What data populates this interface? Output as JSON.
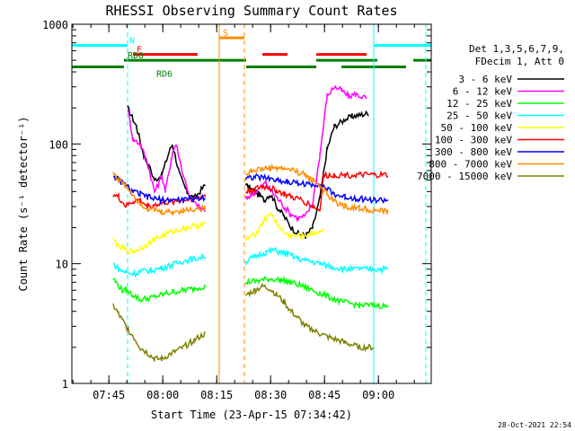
{
  "chart_data": {
    "type": "line",
    "title": "RHESSI Observing Summary Count Rates",
    "xlabel": "Start Time (23-Apr-15 07:34:42)",
    "ylabel": "Count Rate (s⁻¹ detector⁻¹)",
    "yscale": "log",
    "ylim": [
      1,
      1000
    ],
    "xlim_minutes": [
      0,
      100
    ],
    "yticks": [
      {
        "value": 1,
        "label": "1"
      },
      {
        "value": 10,
        "label": "10"
      },
      {
        "value": 100,
        "label": "100"
      },
      {
        "value": 1000,
        "label": "1000"
      }
    ],
    "xticks": [
      {
        "t": 10.3,
        "label": "07:45"
      },
      {
        "t": 25.3,
        "label": "08:00"
      },
      {
        "t": 40.3,
        "label": "08:15"
      },
      {
        "t": 55.3,
        "label": "08:30"
      },
      {
        "t": 70.3,
        "label": "08:45"
      },
      {
        "t": 85.3,
        "label": "09:00"
      }
    ],
    "legend_header": [
      "Det 1,3,5,6,7,9,",
      "FDecim 1, Att 0"
    ],
    "legend_position": "right",
    "series": [
      {
        "name": "3 - 6 keV",
        "color": "#000000",
        "points": [
          [
            15.5,
            200
          ],
          [
            18,
            140
          ],
          [
            20,
            80
          ],
          [
            21.5,
            65
          ],
          [
            23,
            50
          ],
          [
            25,
            55
          ],
          [
            27,
            85
          ],
          [
            28,
            100
          ],
          [
            30,
            55
          ],
          [
            32,
            40
          ],
          [
            34,
            35
          ],
          [
            37,
            45
          ],
          [
            48.5,
            45
          ],
          [
            50,
            42
          ],
          [
            52,
            38
          ],
          [
            53.5,
            34
          ],
          [
            55,
            38
          ],
          [
            56,
            35
          ],
          [
            57,
            30
          ],
          [
            59,
            25
          ],
          [
            61,
            20
          ],
          [
            63,
            18
          ],
          [
            65,
            17
          ],
          [
            67,
            20
          ],
          [
            69,
            35
          ],
          [
            71,
            90
          ],
          [
            73,
            140
          ],
          [
            76,
            160
          ],
          [
            78,
            170
          ],
          [
            80,
            175
          ],
          [
            82.5,
            180
          ]
        ]
      },
      {
        "name": "6 - 12 keV",
        "color": "#ff00ff",
        "points": [
          [
            15.5,
            200
          ],
          [
            17,
            110
          ],
          [
            19,
            100
          ],
          [
            21,
            70
          ],
          [
            23,
            40
          ],
          [
            24,
            45
          ],
          [
            25,
            55
          ],
          [
            26,
            40
          ],
          [
            28,
            85
          ],
          [
            29,
            100
          ],
          [
            31,
            55
          ],
          [
            33,
            35
          ],
          [
            35,
            30
          ],
          [
            37,
            28
          ],
          [
            48.5,
            35
          ],
          [
            50,
            38
          ],
          [
            52,
            42
          ],
          [
            54,
            48
          ],
          [
            55,
            42
          ],
          [
            57,
            36
          ],
          [
            59,
            30
          ],
          [
            61,
            26
          ],
          [
            63,
            24
          ],
          [
            65,
            25
          ],
          [
            67,
            32
          ],
          [
            69,
            80
          ],
          [
            71,
            250
          ],
          [
            73,
            300
          ],
          [
            75,
            280
          ],
          [
            77,
            250
          ],
          [
            79,
            260
          ],
          [
            82,
            240
          ]
        ]
      },
      {
        "name": "12 - 25 keV",
        "color": "#00ff00",
        "points": [
          [
            11.5,
            7.5
          ],
          [
            14,
            6
          ],
          [
            15,
            6
          ],
          [
            17,
            5.5
          ],
          [
            19,
            5
          ],
          [
            22,
            5.2
          ],
          [
            25,
            5.5
          ],
          [
            28,
            5.8
          ],
          [
            31,
            6
          ],
          [
            34,
            6.2
          ],
          [
            37,
            6.5
          ],
          [
            48.5,
            7
          ],
          [
            52,
            7.2
          ],
          [
            55,
            7.5
          ],
          [
            58,
            7.3
          ],
          [
            61,
            7
          ],
          [
            64,
            6.5
          ],
          [
            67,
            6
          ],
          [
            70,
            5.5
          ],
          [
            75,
            4.8
          ],
          [
            80,
            4.5
          ],
          [
            85,
            4.5
          ],
          [
            88,
            4.4
          ]
        ]
      },
      {
        "name": "25 - 50 keV",
        "color": "#00ffff",
        "points": [
          [
            11.5,
            10
          ],
          [
            13,
            9
          ],
          [
            15,
            8.5
          ],
          [
            17,
            8.2
          ],
          [
            19,
            8.6
          ],
          [
            22,
            8.8
          ],
          [
            25,
            9.2
          ],
          [
            28,
            9.8
          ],
          [
            31,
            10.5
          ],
          [
            34,
            11
          ],
          [
            37,
            11.5
          ],
          [
            48.5,
            10.5
          ],
          [
            51,
            11.5
          ],
          [
            54,
            12.5
          ],
          [
            56,
            13
          ],
          [
            58,
            12.5
          ],
          [
            60,
            12
          ],
          [
            63,
            11
          ],
          [
            66,
            10.5
          ],
          [
            69,
            10
          ],
          [
            72,
            9.5
          ],
          [
            76,
            9
          ],
          [
            80,
            9
          ],
          [
            84,
            9
          ],
          [
            88,
            9
          ]
        ]
      },
      {
        "name": "50 - 100 keV",
        "color": "#ffff00",
        "points": [
          [
            11.5,
            16
          ],
          [
            13,
            14
          ],
          [
            15,
            13
          ],
          [
            17,
            12.5
          ],
          [
            19,
            13.5
          ],
          [
            21,
            14.5
          ],
          [
            23,
            16
          ],
          [
            26,
            17.5
          ],
          [
            29,
            19
          ],
          [
            32,
            20
          ],
          [
            35,
            21
          ],
          [
            37,
            21.5
          ],
          [
            48.5,
            16
          ],
          [
            51,
            17.5
          ],
          [
            53,
            22
          ],
          [
            55,
            26
          ],
          [
            57,
            22
          ],
          [
            59,
            18
          ],
          [
            61,
            17
          ],
          [
            64,
            17
          ],
          [
            67,
            18
          ],
          [
            70,
            19
          ]
        ]
      },
      {
        "name": "100 - 300 keV",
        "color": "#ff0000",
        "points": [
          [
            11.5,
            38
          ],
          [
            13,
            36
          ],
          [
            15,
            30
          ],
          [
            17,
            33
          ],
          [
            19,
            34
          ],
          [
            21,
            30
          ],
          [
            23,
            31
          ],
          [
            25,
            32
          ],
          [
            28,
            33
          ],
          [
            31,
            34
          ],
          [
            34,
            35
          ],
          [
            37,
            37
          ],
          [
            48.5,
            40
          ],
          [
            51,
            42
          ],
          [
            53,
            44
          ],
          [
            55,
            43
          ],
          [
            57,
            41
          ],
          [
            59,
            38
          ],
          [
            61,
            36
          ],
          [
            64,
            34
          ],
          [
            67,
            30
          ],
          [
            69,
            28
          ],
          [
            70,
            54
          ],
          [
            73,
            55
          ],
          [
            76,
            55
          ],
          [
            80,
            55
          ],
          [
            84,
            55
          ],
          [
            88,
            55
          ]
        ]
      },
      {
        "name": "300 - 800 keV",
        "color": "#0000ff",
        "points": [
          [
            11.5,
            55
          ],
          [
            13,
            50
          ],
          [
            15,
            45
          ],
          [
            17,
            40
          ],
          [
            19,
            38
          ],
          [
            21,
            36
          ],
          [
            23,
            35
          ],
          [
            25,
            34
          ],
          [
            28,
            34
          ],
          [
            31,
            34
          ],
          [
            34,
            35
          ],
          [
            37,
            36
          ],
          [
            48.5,
            52
          ],
          [
            51,
            53
          ],
          [
            54,
            52
          ],
          [
            57,
            50
          ],
          [
            60,
            48
          ],
          [
            63,
            47
          ],
          [
            66,
            46
          ],
          [
            69,
            46
          ],
          [
            71,
            42
          ],
          [
            73,
            38
          ],
          [
            76,
            36
          ],
          [
            80,
            35
          ],
          [
            84,
            34
          ],
          [
            88,
            34
          ]
        ]
      },
      {
        "name": "800 - 7000 keV",
        "color": "#ff8c00",
        "points": [
          [
            11.5,
            58
          ],
          [
            13,
            50
          ],
          [
            15,
            45
          ],
          [
            17,
            38
          ],
          [
            19,
            32
          ],
          [
            21,
            29
          ],
          [
            23,
            28
          ],
          [
            25,
            27
          ],
          [
            28,
            27
          ],
          [
            31,
            28
          ],
          [
            34,
            28.5
          ],
          [
            37,
            29
          ],
          [
            48.5,
            57
          ],
          [
            50,
            60
          ],
          [
            53,
            62
          ],
          [
            55,
            63
          ],
          [
            57,
            63
          ],
          [
            59,
            62
          ],
          [
            61,
            61
          ],
          [
            63,
            58
          ],
          [
            65,
            55
          ],
          [
            67,
            50
          ],
          [
            69,
            45
          ],
          [
            71,
            38
          ],
          [
            73,
            33
          ],
          [
            76,
            30
          ],
          [
            80,
            29
          ],
          [
            84,
            28
          ],
          [
            88,
            27
          ]
        ]
      },
      {
        "name": "7000 - 15000 keV",
        "color": "#808000",
        "points": [
          [
            11.5,
            4.5
          ],
          [
            13,
            3.8
          ],
          [
            15,
            3
          ],
          [
            17,
            2.5
          ],
          [
            19,
            2
          ],
          [
            21,
            1.8
          ],
          [
            23,
            1.6
          ],
          [
            25,
            1.6
          ],
          [
            28,
            1.8
          ],
          [
            31,
            2
          ],
          [
            34,
            2.3
          ],
          [
            37,
            2.6
          ],
          [
            48.5,
            5.5
          ],
          [
            51,
            6
          ],
          [
            53,
            6.5
          ],
          [
            55,
            6.2
          ],
          [
            57,
            5.5
          ],
          [
            59,
            4.8
          ],
          [
            61,
            4
          ],
          [
            63,
            3.5
          ],
          [
            65,
            3
          ],
          [
            67,
            2.8
          ],
          [
            69,
            2.6
          ],
          [
            72,
            2.4
          ],
          [
            76,
            2.2
          ],
          [
            80,
            2
          ],
          [
            84,
            2
          ]
        ]
      }
    ],
    "flags": [
      {
        "label": "N",
        "color": "#00ffff",
        "segments": [
          [
            0,
            15.5
          ],
          [
            84,
            100
          ]
        ],
        "y": 665
      },
      {
        "label": "S",
        "color": "#ff8c00",
        "segments": [
          [
            41,
            48
          ]
        ],
        "y": 770
      },
      {
        "label": "F",
        "color": "#ff0000",
        "segments": [
          [
            17,
            35
          ],
          [
            53,
            60
          ],
          [
            68,
            82
          ]
        ],
        "y": 560
      },
      {
        "label": "RD0",
        "color": "#008000",
        "segments": [
          [
            14.5,
            48.5
          ],
          [
            68,
            85
          ],
          [
            95,
            100
          ]
        ],
        "y": 500
      },
      {
        "label": "RD6",
        "color": "#008000",
        "segments": [
          [
            0,
            14.5
          ],
          [
            48.5,
            68
          ],
          [
            75,
            93
          ]
        ],
        "y": 440
      }
    ],
    "saa_vlines": [
      {
        "t": 0,
        "color": "#00ffff",
        "style": "solid"
      },
      {
        "t": 15.5,
        "color": "#00ffff",
        "style": "dashed"
      },
      {
        "t": 41,
        "color": "#ff8c00",
        "style": "solid"
      },
      {
        "t": 48,
        "color": "#ff8c00",
        "style": "dashed"
      },
      {
        "t": 84,
        "color": "#00ffff",
        "style": "solid"
      },
      {
        "t": 98.5,
        "color": "#00ffff",
        "style": "dashed"
      }
    ],
    "grid": false,
    "footer_timestamp": "28-Oct-2021 22:54"
  }
}
